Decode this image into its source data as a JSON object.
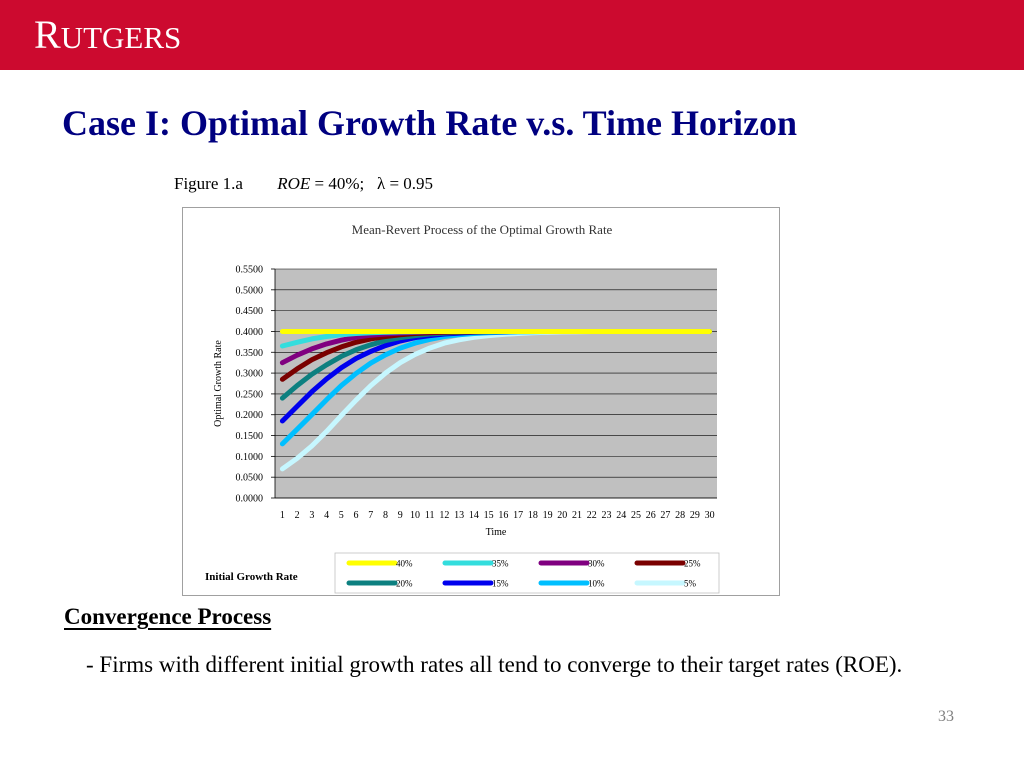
{
  "header": {
    "logo_first": "R",
    "logo_rest": "UTGERS",
    "color": "#cc0a2f"
  },
  "slide": {
    "title": "Case I: Optimal Growth Rate v.s. Time Horizon",
    "figure_label": "Figure 1.a",
    "figure_roe_var": "ROE",
    "figure_roe_value": " = 40%;",
    "figure_lambda": "λ = 0.95",
    "section_heading": "Convergence Process",
    "bullet": "- Firms with different initial growth rates all tend to converge to their target rates (ROE).",
    "page_number": "33"
  },
  "chart_data": {
    "type": "line",
    "title": "Mean-Revert Process of the Optimal Growth Rate",
    "xlabel": "Time",
    "ylabel": "Optimal Growth Rate",
    "legend_title": "Initial Growth Rate",
    "legend_position": "bottom",
    "plot_background": "#c0c0c0",
    "grid": true,
    "ylim": [
      0,
      0.55
    ],
    "yticks": [
      "0.0000",
      "0.0500",
      "0.1000",
      "0.1500",
      "0.2000",
      "0.2500",
      "0.3000",
      "0.3500",
      "0.4000",
      "0.4500",
      "0.5000",
      "0.5500"
    ],
    "x": [
      1,
      2,
      3,
      4,
      5,
      6,
      7,
      8,
      9,
      10,
      11,
      12,
      13,
      14,
      15,
      16,
      17,
      18,
      19,
      20,
      21,
      22,
      23,
      24,
      25,
      26,
      27,
      28,
      29,
      30
    ],
    "series": [
      {
        "name": "40%",
        "color": "#ffff00",
        "values": [
          0.4,
          0.4,
          0.4,
          0.4,
          0.4,
          0.4,
          0.4,
          0.4,
          0.4,
          0.4,
          0.4,
          0.4,
          0.4,
          0.4,
          0.4,
          0.4,
          0.4,
          0.4,
          0.4,
          0.4,
          0.4,
          0.4,
          0.4,
          0.4,
          0.4,
          0.4,
          0.4,
          0.4,
          0.4,
          0.4
        ]
      },
      {
        "name": "35%",
        "color": "#33dddd",
        "values": [
          0.365,
          0.374,
          0.382,
          0.388,
          0.392,
          0.395,
          0.397,
          0.398,
          0.399,
          0.3995,
          0.4,
          0.4,
          0.4,
          0.4,
          0.4,
          0.4,
          0.4,
          0.4,
          0.4,
          0.4,
          0.4,
          0.4,
          0.4,
          0.4,
          0.4,
          0.4,
          0.4,
          0.4,
          0.4,
          0.4
        ]
      },
      {
        "name": "30%",
        "color": "#800080",
        "values": [
          0.325,
          0.343,
          0.358,
          0.37,
          0.379,
          0.386,
          0.391,
          0.394,
          0.396,
          0.398,
          0.399,
          0.3995,
          0.4,
          0.4,
          0.4,
          0.4,
          0.4,
          0.4,
          0.4,
          0.4,
          0.4,
          0.4,
          0.4,
          0.4,
          0.4,
          0.4,
          0.4,
          0.4,
          0.4,
          0.4
        ]
      },
      {
        "name": "25%",
        "color": "#7a0000",
        "values": [
          0.285,
          0.31,
          0.332,
          0.349,
          0.363,
          0.374,
          0.382,
          0.388,
          0.392,
          0.395,
          0.397,
          0.398,
          0.399,
          0.3995,
          0.4,
          0.4,
          0.4,
          0.4,
          0.4,
          0.4,
          0.4,
          0.4,
          0.4,
          0.4,
          0.4,
          0.4,
          0.4,
          0.4,
          0.4,
          0.4
        ]
      },
      {
        "name": "20%",
        "color": "#0d8080",
        "values": [
          0.24,
          0.27,
          0.297,
          0.32,
          0.34,
          0.356,
          0.368,
          0.378,
          0.385,
          0.39,
          0.394,
          0.396,
          0.398,
          0.399,
          0.3995,
          0.4,
          0.4,
          0.4,
          0.4,
          0.4,
          0.4,
          0.4,
          0.4,
          0.4,
          0.4,
          0.4,
          0.4,
          0.4,
          0.4,
          0.4
        ]
      },
      {
        "name": "15%",
        "color": "#0000ee",
        "values": [
          0.185,
          0.22,
          0.255,
          0.286,
          0.313,
          0.335,
          0.352,
          0.366,
          0.377,
          0.385,
          0.39,
          0.394,
          0.396,
          0.398,
          0.399,
          0.3995,
          0.4,
          0.4,
          0.4,
          0.4,
          0.4,
          0.4,
          0.4,
          0.4,
          0.4,
          0.4,
          0.4,
          0.4,
          0.4,
          0.4
        ]
      },
      {
        "name": "10%",
        "color": "#00bfff",
        "values": [
          0.13,
          0.165,
          0.2,
          0.236,
          0.27,
          0.299,
          0.324,
          0.344,
          0.36,
          0.372,
          0.381,
          0.388,
          0.392,
          0.395,
          0.397,
          0.398,
          0.399,
          0.3995,
          0.4,
          0.4,
          0.4,
          0.4,
          0.4,
          0.4,
          0.4,
          0.4,
          0.4,
          0.4,
          0.4,
          0.4
        ]
      },
      {
        "name": "5%",
        "color": "#c6f7ff",
        "values": [
          0.07,
          0.095,
          0.125,
          0.16,
          0.198,
          0.235,
          0.27,
          0.3,
          0.325,
          0.345,
          0.36,
          0.372,
          0.38,
          0.386,
          0.39,
          0.393,
          0.395,
          0.397,
          0.398,
          0.399,
          0.3995,
          0.4,
          0.4,
          0.4,
          0.4,
          0.4,
          0.4,
          0.4,
          0.4,
          0.4
        ]
      }
    ]
  }
}
